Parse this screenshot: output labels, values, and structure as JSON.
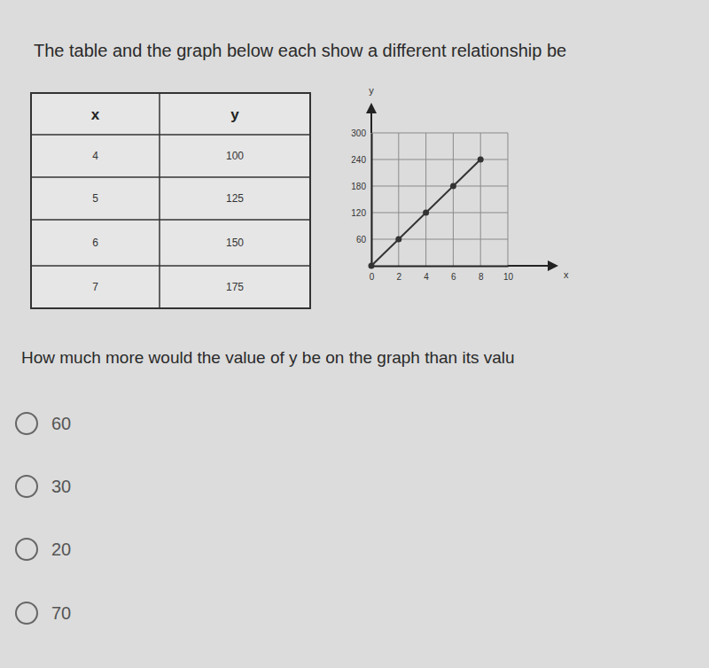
{
  "heading": "The table and the graph below each show a different relationship be",
  "table": {
    "columns": [
      "x",
      "y"
    ],
    "rows": [
      [
        4,
        100
      ],
      [
        5,
        125
      ],
      [
        6,
        150
      ],
      [
        7,
        175
      ]
    ]
  },
  "chart_data": {
    "type": "line",
    "x_label": "x",
    "y_label": "y",
    "x": [
      0,
      2,
      4,
      6,
      8
    ],
    "series": [
      {
        "values": [
          0,
          60,
          120,
          180,
          240
        ],
        "color": "#333333",
        "marker": "circle"
      }
    ],
    "xlim": [
      0,
      10
    ],
    "ylim": [
      0,
      300
    ],
    "xticks": [
      0,
      2,
      4,
      6,
      8,
      10
    ],
    "yticks": [
      60,
      120,
      180,
      240,
      300
    ],
    "grid": true
  },
  "question": {
    "text": "How much more would the value of y be on the graph than its valu",
    "options": [
      60,
      30,
      20,
      70
    ]
  }
}
